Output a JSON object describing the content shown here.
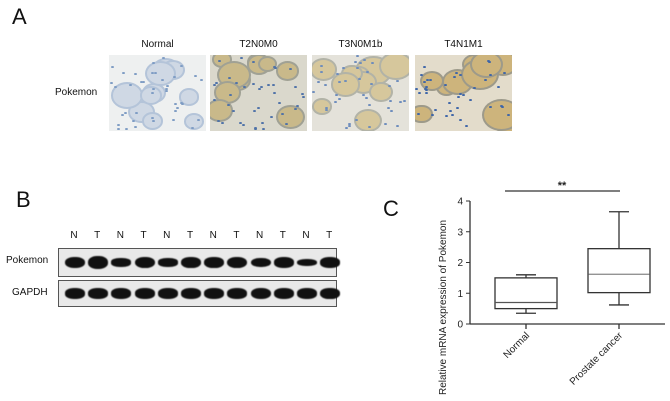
{
  "panel_a": {
    "letter": "A",
    "row_label": "Pokemon",
    "columns": [
      {
        "label": "Normal",
        "base": "#eef0f0",
        "stain": "#cfd8e4",
        "nuclei": "#7e9cc4"
      },
      {
        "label": "T2N0M0",
        "base": "#dad8cc",
        "stain": "#c9b98a",
        "nuclei": "#4f72a8"
      },
      {
        "label": "T3N0M1b",
        "base": "#e4e2da",
        "stain": "#d6c79c",
        "nuclei": "#6d8cbc"
      },
      {
        "label": "T4N1M1",
        "base": "#e3dccb",
        "stain": "#cdb47c",
        "nuclei": "#3f66a8"
      }
    ]
  },
  "panel_b": {
    "letter": "B",
    "lanes": [
      "N",
      "T",
      "N",
      "T",
      "N",
      "T",
      "N",
      "T",
      "N",
      "T",
      "N",
      "T"
    ],
    "rows": [
      {
        "label": "Pokemon",
        "band_intensity": [
          0.8,
          1.0,
          0.45,
          0.85,
          0.45,
          0.75,
          0.75,
          0.85,
          0.6,
          0.7,
          0.3,
          0.7
        ]
      },
      {
        "label": "GAPDH",
        "band_intensity": [
          0.7,
          0.7,
          0.7,
          0.7,
          0.7,
          0.7,
          0.7,
          0.7,
          0.8,
          0.7,
          0.7,
          0.75
        ]
      }
    ]
  },
  "panel_c": {
    "letter": "C"
  },
  "chart_data": {
    "type": "box",
    "ylabel": "Relative mRNA expression of  Pokemon",
    "ylim": [
      0,
      4
    ],
    "yticks": [
      "0",
      "1",
      "2",
      "3",
      "4"
    ],
    "categories": [
      "Normal",
      "Prostate cancer"
    ],
    "boxes": [
      {
        "category": "Normal",
        "min": 0.35,
        "q1": 0.5,
        "median": 0.7,
        "q3": 1.5,
        "max": 1.6
      },
      {
        "category": "Prostate cancer",
        "min": 0.62,
        "q1": 1.02,
        "median": 1.62,
        "q3": 2.45,
        "max": 3.65
      }
    ],
    "significance": "**",
    "grid": false
  }
}
